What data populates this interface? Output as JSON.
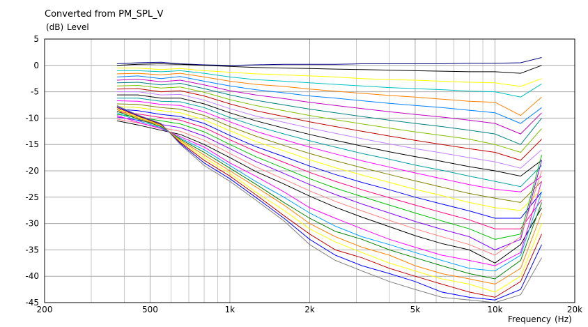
{
  "chart_data": {
    "type": "line",
    "title": "Converted from PM_SPL_V",
    "ylabel_unit": "(dB)",
    "ylabel": "Level",
    "xlabel": "Frequency",
    "xlabel_unit": "(Hz)",
    "x_scale": "log",
    "xlim": [
      200,
      20000
    ],
    "ylim": [
      -45,
      5
    ],
    "grid": true,
    "x_ticks": [
      200,
      500,
      1000,
      2000,
      5000,
      10000,
      20000
    ],
    "x_tick_labels": [
      "200",
      "500",
      "1k",
      "2k",
      "5k",
      "10k",
      "20k"
    ],
    "y_ticks": [
      5,
      0,
      -5,
      -10,
      -15,
      -20,
      -25,
      -30,
      -35,
      -40,
      -45
    ],
    "y_tick_labels": [
      "5",
      "0",
      "-5",
      "-10",
      "-15",
      "-20",
      "-25",
      "-30",
      "-35",
      "-40",
      "-45"
    ],
    "x": [
      375,
      450,
      550,
      650,
      800,
      1000,
      1250,
      1600,
      2000,
      2500,
      3150,
      4000,
      5000,
      6300,
      8000,
      10000,
      12500,
      15000
    ],
    "colors": [
      "#000080",
      "#000000",
      "#ffff00",
      "#00c0c0",
      "#ff8000",
      "#0080ff",
      "#c000c0",
      "#008080",
      "#80c000",
      "#c00000",
      "#c080ff",
      "#000000",
      "#00a0a0",
      "#ff00ff",
      "#808000",
      "#ffff00",
      "#0000ff",
      "#ff0080",
      "#00c000",
      "#8000ff",
      "#ff8080",
      "#000000",
      "#ff00ff",
      "#00a0ff",
      "#008000",
      "#ff8000",
      "#ffff00",
      "#c00000",
      "#0000ff",
      "#808080"
    ],
    "series": [
      {
        "values": [
          0.3,
          0.5,
          0.6,
          0.3,
          0.1,
          0.0,
          0.1,
          0.2,
          0.2,
          0.2,
          0.3,
          0.3,
          0.3,
          0.3,
          0.4,
          0.4,
          0.5,
          1.5
        ]
      },
      {
        "values": [
          0.0,
          0.2,
          0.3,
          0.2,
          0.0,
          -0.2,
          -0.4,
          -0.5,
          -0.6,
          -0.7,
          -0.8,
          -0.9,
          -1.0,
          -1.1,
          -1.2,
          -1.2,
          -1.5,
          0.0
        ]
      },
      {
        "values": [
          -0.5,
          -0.5,
          -0.8,
          -0.6,
          -1.0,
          -1.3,
          -1.6,
          -1.8,
          -2.0,
          -2.2,
          -2.5,
          -2.7,
          -2.8,
          -3.0,
          -3.2,
          -3.3,
          -4.0,
          -2.5
        ]
      },
      {
        "values": [
          -1.0,
          -1.0,
          -1.2,
          -1.0,
          -1.5,
          -2.2,
          -2.7,
          -3.0,
          -3.3,
          -3.6,
          -3.9,
          -4.2,
          -4.4,
          -4.6,
          -4.9,
          -5.0,
          -6.0,
          -3.5
        ]
      },
      {
        "values": [
          -1.6,
          -1.5,
          -1.8,
          -1.5,
          -2.2,
          -3.0,
          -3.6,
          -4.0,
          -4.5,
          -4.9,
          -5.3,
          -5.7,
          -6.0,
          -6.4,
          -6.8,
          -7.0,
          -9.5,
          -6.0
        ]
      },
      {
        "values": [
          -2.2,
          -2.0,
          -2.5,
          -2.1,
          -3.0,
          -3.9,
          -4.6,
          -5.2,
          -5.8,
          -6.2,
          -6.7,
          -7.2,
          -7.6,
          -8.0,
          -8.5,
          -9.0,
          -11.0,
          -8.0
        ]
      },
      {
        "values": [
          -2.8,
          -2.6,
          -3.1,
          -2.8,
          -3.7,
          -4.8,
          -5.6,
          -6.3,
          -7.0,
          -7.6,
          -8.2,
          -8.8,
          -9.3,
          -9.8,
          -10.4,
          -11.0,
          -13.0,
          -9.0
        ]
      },
      {
        "values": [
          -3.3,
          -3.2,
          -3.7,
          -3.4,
          -4.4,
          -5.6,
          -6.6,
          -7.5,
          -8.3,
          -9.0,
          -9.7,
          -10.4,
          -11.0,
          -11.6,
          -12.3,
          -13.0,
          -15.0,
          -10.0
        ]
      },
      {
        "values": [
          -3.9,
          -3.8,
          -4.3,
          -4.1,
          -5.1,
          -6.5,
          -7.6,
          -8.6,
          -9.5,
          -10.3,
          -11.1,
          -11.9,
          -12.6,
          -13.3,
          -14.0,
          -15.0,
          -16.5,
          -12.0
        ]
      },
      {
        "values": [
          -4.5,
          -4.4,
          -5.0,
          -4.8,
          -5.8,
          -7.3,
          -8.6,
          -9.7,
          -10.7,
          -11.6,
          -12.5,
          -13.4,
          -14.2,
          -15.0,
          -15.8,
          -16.5,
          -18.0,
          -14.0
        ]
      },
      {
        "values": [
          -5.0,
          -5.0,
          -5.6,
          -5.5,
          -6.6,
          -8.2,
          -9.6,
          -10.8,
          -11.9,
          -12.9,
          -13.9,
          -14.9,
          -15.8,
          -16.6,
          -17.5,
          -18.3,
          -19.5,
          -16.0
        ]
      },
      {
        "values": [
          -5.6,
          -5.6,
          -6.2,
          -6.2,
          -7.3,
          -9.0,
          -10.5,
          -11.9,
          -13.1,
          -14.2,
          -15.3,
          -16.4,
          -17.3,
          -18.2,
          -19.2,
          -20.0,
          -21.0,
          -18.0
        ]
      },
      {
        "values": [
          -6.2,
          -6.2,
          -6.8,
          -6.9,
          -8.0,
          -9.9,
          -11.5,
          -13.0,
          -14.3,
          -15.5,
          -16.7,
          -17.8,
          -18.9,
          -19.9,
          -21.0,
          -22.0,
          -23.0,
          -19.0
        ]
      },
      {
        "values": [
          -6.7,
          -6.8,
          -7.4,
          -7.6,
          -8.8,
          -10.7,
          -12.5,
          -14.1,
          -15.5,
          -16.8,
          -18.1,
          -19.3,
          -20.4,
          -21.5,
          -22.6,
          -23.5,
          -24.0,
          -21.0
        ]
      },
      {
        "values": [
          -7.3,
          -7.4,
          -8.0,
          -8.3,
          -9.5,
          -11.6,
          -13.4,
          -15.2,
          -16.7,
          -18.1,
          -19.4,
          -20.7,
          -21.9,
          -23.1,
          -24.3,
          -25.2,
          -26.0,
          -22.0
        ]
      },
      {
        "values": [
          -7.8,
          -8.0,
          -8.6,
          -9.0,
          -10.3,
          -12.4,
          -14.4,
          -16.2,
          -17.9,
          -19.4,
          -20.8,
          -22.2,
          -23.5,
          -24.7,
          -26.0,
          -27.0,
          -27.5,
          -23.5
        ]
      },
      {
        "values": [
          -8.3,
          -8.6,
          -9.3,
          -9.7,
          -11.0,
          -13.3,
          -15.4,
          -17.3,
          -19.1,
          -20.7,
          -22.2,
          -23.6,
          -25.0,
          -26.3,
          -27.6,
          -29.0,
          -29.0,
          -24.0
        ]
      },
      {
        "values": [
          -8.8,
          -9.2,
          -9.9,
          -10.4,
          -11.8,
          -14.1,
          -16.3,
          -18.4,
          -20.3,
          -22.0,
          -23.6,
          -25.1,
          -26.5,
          -27.9,
          -29.3,
          -31.0,
          -31.0,
          -25.5
        ]
      },
      {
        "values": [
          -9.3,
          -9.8,
          -10.5,
          -11.1,
          -12.6,
          -15.0,
          -17.3,
          -19.5,
          -21.5,
          -23.3,
          -24.9,
          -26.5,
          -28.0,
          -29.5,
          -31.0,
          -33.0,
          -32.0,
          -17.0
        ]
      },
      {
        "values": [
          -9.8,
          -10.4,
          -11.2,
          -11.8,
          -13.4,
          -15.8,
          -18.2,
          -20.5,
          -22.6,
          -24.5,
          -26.3,
          -28.0,
          -29.6,
          -31.1,
          -32.5,
          -35.0,
          -33.0,
          -18.0
        ]
      },
      {
        "values": [
          -10.2,
          -10.9,
          -11.8,
          -12.5,
          -14.2,
          -16.7,
          -19.2,
          -21.6,
          -23.8,
          -25.8,
          -27.6,
          -29.4,
          -31.0,
          -32.5,
          -34.0,
          -36.0,
          -32.5,
          -20.0
        ]
      },
      {
        "values": [
          -10.5,
          -11.3,
          -12.3,
          -13.1,
          -15.0,
          -17.5,
          -20.1,
          -22.5,
          -24.8,
          -26.9,
          -28.8,
          -30.6,
          -32.3,
          -33.8,
          -35.0,
          -37.5,
          -34.0,
          -27.0
        ]
      },
      {
        "values": [
          -9.5,
          -10.8,
          -12.0,
          -13.5,
          -15.5,
          -18.5,
          -21.0,
          -24.0,
          -27.0,
          -29.0,
          -31.0,
          -33.0,
          -34.5,
          -36.0,
          -37.0,
          -38.0,
          -35.5,
          -22.0
        ]
      },
      {
        "values": [
          -9.0,
          -10.5,
          -11.8,
          -13.8,
          -16.0,
          -19.0,
          -22.0,
          -25.0,
          -28.0,
          -30.5,
          -32.5,
          -34.0,
          -35.5,
          -37.0,
          -38.5,
          -39.0,
          -36.0,
          -24.0
        ]
      },
      {
        "values": [
          -8.7,
          -10.2,
          -11.6,
          -14.0,
          -16.5,
          -19.5,
          -22.5,
          -26.0,
          -29.0,
          -31.5,
          -33.0,
          -35.0,
          -36.5,
          -38.0,
          -39.5,
          -40.5,
          -37.0,
          -26.0
        ]
      },
      {
        "values": [
          -8.4,
          -10.0,
          -11.4,
          -14.2,
          -17.0,
          -20.0,
          -23.0,
          -26.5,
          -30.0,
          -32.5,
          -34.5,
          -36.0,
          -38.0,
          -39.5,
          -40.5,
          -41.5,
          -38.5,
          -28.0
        ]
      },
      {
        "values": [
          -8.2,
          -9.8,
          -11.3,
          -14.4,
          -17.5,
          -20.5,
          -24.0,
          -27.5,
          -31.0,
          -33.5,
          -35.5,
          -37.5,
          -39.0,
          -40.5,
          -41.5,
          -43.0,
          -40.0,
          -30.0
        ]
      },
      {
        "values": [
          -8.0,
          -9.6,
          -11.2,
          -14.6,
          -18.0,
          -21.0,
          -24.5,
          -28.5,
          -32.0,
          -35.0,
          -36.5,
          -38.5,
          -40.0,
          -41.5,
          -43.0,
          -44.0,
          -41.0,
          -32.0
        ]
      },
      {
        "values": [
          -7.8,
          -9.5,
          -11.1,
          -14.8,
          -18.5,
          -21.5,
          -25.0,
          -29.0,
          -33.0,
          -36.0,
          -38.0,
          -39.5,
          -41.0,
          -43.0,
          -44.0,
          -44.5,
          -42.5,
          -34.0
        ]
      },
      {
        "values": [
          -7.6,
          -9.4,
          -11.0,
          -15.0,
          -19.0,
          -22.0,
          -25.5,
          -29.5,
          -34.0,
          -37.0,
          -39.0,
          -41.0,
          -42.5,
          -44.0,
          -44.5,
          -45.0,
          -43.5,
          -36.5
        ]
      }
    ]
  }
}
